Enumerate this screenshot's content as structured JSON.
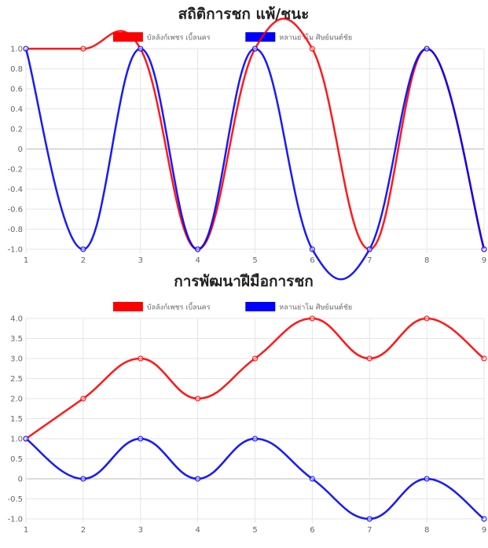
{
  "chart_data": [
    {
      "type": "line",
      "title": "สถิติการชก แพ้/ชนะ",
      "x": [
        1,
        2,
        3,
        4,
        5,
        6,
        7,
        8,
        9
      ],
      "ylim": [
        -1.0,
        1.0
      ],
      "yticks": [
        "1.0",
        "0.8",
        "0.6",
        "0.4",
        "0.2",
        "0",
        "-0.2",
        "-0.4",
        "-0.6",
        "-0.8",
        "-1.0"
      ],
      "ytick_values": [
        1.0,
        0.8,
        0.6,
        0.4,
        0.2,
        0,
        -0.2,
        -0.4,
        -0.6,
        -0.8,
        -1.0
      ],
      "grid": true,
      "legend_position": "top",
      "series": [
        {
          "name": "บัลลังก์เพชร เบิ้ลนคร",
          "color": "#ff0000",
          "values": [
            1,
            1,
            1,
            -1,
            1,
            1,
            -1,
            1,
            -1
          ]
        },
        {
          "name": "หลานย่าโม ศิษย์มนต์ชัย",
          "color": "#0000ff",
          "values": [
            1,
            -1,
            1,
            -1,
            1,
            -1,
            -1,
            1,
            -1
          ]
        }
      ]
    },
    {
      "type": "line",
      "title": "การพัฒนาฝีมือการชก",
      "x": [
        1,
        2,
        3,
        4,
        5,
        6,
        7,
        8,
        9
      ],
      "ylim": [
        -1.0,
        4.0
      ],
      "yticks": [
        "4.0",
        "3.5",
        "3.0",
        "2.5",
        "2.0",
        "1.5",
        "1.0",
        "0.5",
        "0",
        "-0.5",
        "-1.0"
      ],
      "ytick_values": [
        4.0,
        3.5,
        3.0,
        2.5,
        2.0,
        1.5,
        1.0,
        0.5,
        0,
        -0.5,
        -1.0
      ],
      "grid": true,
      "legend_position": "top",
      "series": [
        {
          "name": "บัลลังก์เพชร เบิ้ลนคร",
          "color": "#ff0000",
          "values": [
            1,
            2,
            3,
            2,
            3,
            4,
            3,
            4,
            3
          ]
        },
        {
          "name": "หลานย่าโม ศิษย์มนต์ชัย",
          "color": "#0000ff",
          "values": [
            1,
            0,
            1,
            0,
            1,
            0,
            -1,
            0,
            -1
          ]
        }
      ]
    }
  ]
}
